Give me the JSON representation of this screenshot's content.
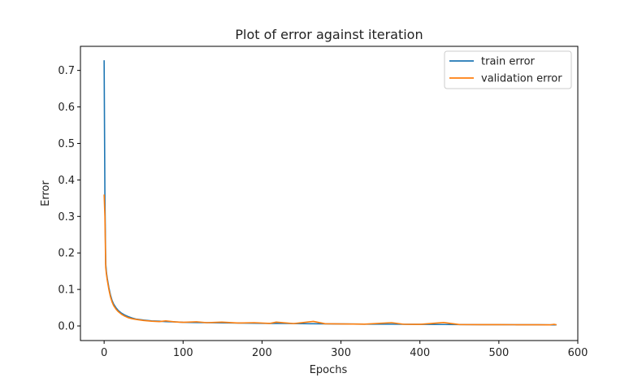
{
  "chart_data": {
    "type": "line",
    "title": "Plot of error against iteration",
    "xlabel": "Epochs",
    "ylabel": "Error",
    "xlim": [
      -30,
      600
    ],
    "ylim": [
      -0.04,
      0.766
    ],
    "xticks": [
      0,
      100,
      200,
      300,
      400,
      500,
      600
    ],
    "yticks": [
      0.0,
      0.1,
      0.2,
      0.3,
      0.4,
      0.5,
      0.6,
      0.7
    ],
    "grid": false,
    "legend_position": "top-right",
    "series": [
      {
        "name": "train error",
        "color": "#1f77b4",
        "x": [
          0,
          1,
          2,
          3,
          4,
          6,
          8,
          10,
          12,
          15,
          18,
          22,
          26,
          30,
          35,
          40,
          50,
          60,
          70,
          78,
          90,
          100,
          117,
          130,
          149,
          170,
          190,
          210,
          218,
          240,
          265,
          280,
          300,
          330,
          364,
          380,
          400,
          430,
          450,
          480,
          500,
          520,
          535,
          550,
          565,
          570,
          573
        ],
        "y": [
          0.728,
          0.35,
          0.17,
          0.145,
          0.13,
          0.105,
          0.085,
          0.07,
          0.06,
          0.05,
          0.042,
          0.035,
          0.03,
          0.026,
          0.022,
          0.019,
          0.016,
          0.014,
          0.013,
          0.012,
          0.011,
          0.01,
          0.0095,
          0.009,
          0.0085,
          0.008,
          0.0075,
          0.007,
          0.0072,
          0.0065,
          0.006,
          0.0058,
          0.0055,
          0.005,
          0.0048,
          0.0045,
          0.0043,
          0.004,
          0.0038,
          0.0036,
          0.0035,
          0.0034,
          0.0033,
          0.0032,
          0.0031,
          0.0031,
          0.003
        ]
      },
      {
        "name": "validation error",
        "color": "#ff7f0e",
        "x": [
          0,
          1,
          2,
          3,
          4,
          6,
          8,
          10,
          12,
          15,
          18,
          22,
          26,
          30,
          35,
          40,
          50,
          60,
          70,
          78,
          90,
          100,
          117,
          130,
          149,
          170,
          190,
          210,
          218,
          240,
          265,
          280,
          300,
          330,
          364,
          380,
          400,
          430,
          450,
          480,
          500,
          520,
          535,
          550,
          565,
          570,
          573
        ],
        "y": [
          0.36,
          0.3,
          0.16,
          0.14,
          0.125,
          0.1,
          0.08,
          0.066,
          0.056,
          0.046,
          0.039,
          0.032,
          0.027,
          0.023,
          0.02,
          0.018,
          0.015,
          0.013,
          0.012,
          0.014,
          0.011,
          0.01,
          0.0115,
          0.009,
          0.0105,
          0.008,
          0.009,
          0.007,
          0.0105,
          0.0065,
          0.0125,
          0.006,
          0.0055,
          0.005,
          0.009,
          0.0045,
          0.0043,
          0.0095,
          0.0038,
          0.0036,
          0.0035,
          0.0034,
          0.0033,
          0.0032,
          0.0031,
          0.0045,
          0.003
        ]
      }
    ]
  }
}
